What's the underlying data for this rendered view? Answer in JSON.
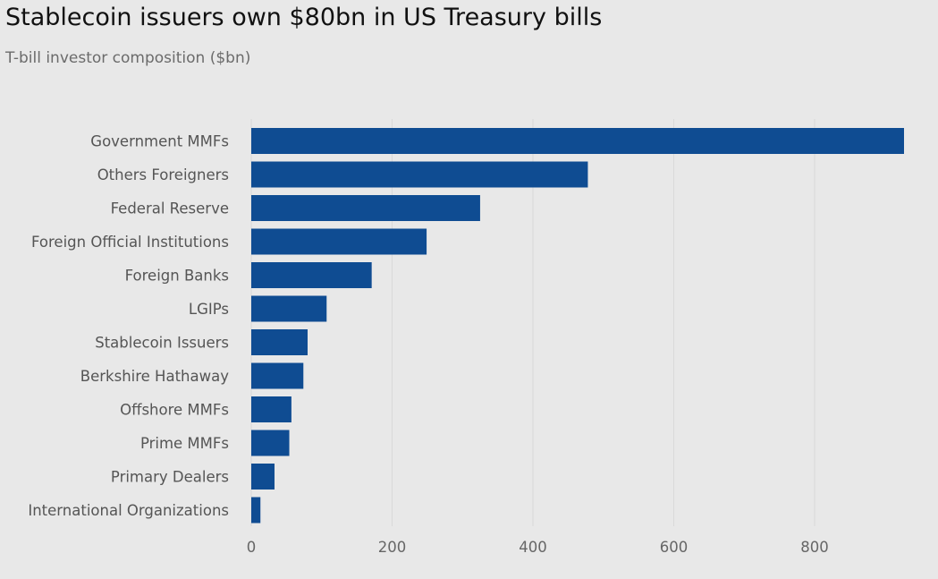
{
  "title": "Stablecoin issuers own $80bn in US Treasury bills",
  "subtitle": "T-bill investor composition ($bn)",
  "colors": {
    "bar": "#0f4c92",
    "background": "#e8e8e8",
    "grid": "#d9d9d9"
  },
  "chart_data": {
    "type": "bar",
    "orientation": "horizontal",
    "categories": [
      "Government MMFs",
      "Others Foreigners",
      "Federal Reserve",
      "Foreign Official Institutions",
      "Foreign Banks",
      "LGIPs",
      "Stablecoin Issuers",
      "Berkshire Hathaway",
      "Offshore MMFs",
      "Prime MMFs",
      "Primary Dealers",
      "International Organizations"
    ],
    "values": [
      927,
      478,
      325,
      249,
      171,
      107,
      80,
      74,
      57,
      54,
      33,
      13
    ],
    "xlim": [
      0,
      927
    ],
    "xticks": [
      0,
      200,
      400,
      600,
      800
    ],
    "grid": true,
    "xlabel": "",
    "ylabel": ""
  }
}
